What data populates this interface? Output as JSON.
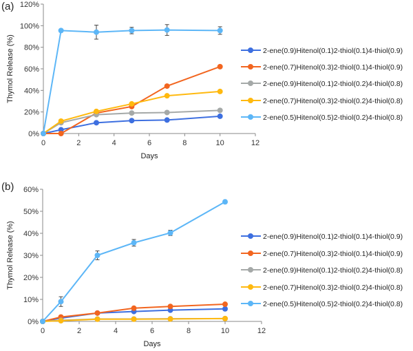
{
  "legend_labels": [
    "2-ene(0.9)Hitenol(0.1)2-thiol(0.1)4-thiol(0.9)",
    "2-ene(0.7)Hitenol(0.3)2-thiol(0.1)4-thiol(0.9)",
    "2-ene(0.9)Hitenol(0.1)2-thiol(0.2)4-thiol(0.8)",
    "2-ene(0.7)Hitenol(0.3)2-thiol(0.2)4-thiol(0.8)",
    "2-ene(0.5)Hitenol(0.5)2-thiol(0.2)4-thiol(0.8)"
  ],
  "chart_data": [
    {
      "type": "line",
      "panel_label": "(a)",
      "xlabel": "Days",
      "ylabel": "Thymol Release (%)",
      "xlim": [
        0,
        12
      ],
      "ylim": [
        0,
        120
      ],
      "xticks": [
        "0",
        "2",
        "4",
        "6",
        "8",
        "10",
        "12"
      ],
      "yticks": [
        "0%",
        "20%",
        "40%",
        "60%",
        "80%",
        "100%",
        "120%"
      ],
      "legend_position": "right",
      "grid": false,
      "x": [
        0,
        1,
        3,
        5,
        7,
        10
      ],
      "series": [
        {
          "name": "2-ene(0.9)Hitenol(0.1)2-thiol(0.1)4-thiol(0.9)",
          "color": "#3d6fe0",
          "values": [
            0,
            3.5,
            10,
            12,
            12.5,
            16
          ]
        },
        {
          "name": "2-ene(0.7)Hitenol(0.3)2-thiol(0.1)4-thiol(0.9)",
          "color": "#f2651f",
          "values": [
            0,
            0,
            19,
            25,
            44,
            62
          ]
        },
        {
          "name": "2-ene(0.9)Hitenol(0.1)2-thiol(0.2)4-thiol(0.8)",
          "color": "#a5a9a8",
          "values": [
            0,
            10,
            17.5,
            19,
            19.5,
            21.5
          ]
        },
        {
          "name": "2-ene(0.7)Hitenol(0.3)2-thiol(0.2)4-thiol(0.8)",
          "color": "#ffb90f",
          "values": [
            0,
            11.5,
            20.5,
            27.5,
            35,
            39
          ]
        },
        {
          "name": "2-ene(0.5)Hitenol(0.5)2-thiol(0.2)4-thiol(0.8)",
          "color": "#5cb6f7",
          "values": [
            0,
            95.5,
            94,
            95.5,
            96,
            95.5
          ],
          "errors": [
            0,
            0,
            6.5,
            3,
            5,
            3.5
          ]
        }
      ]
    },
    {
      "type": "line",
      "panel_label": "(b)",
      "xlabel": "Days",
      "ylabel": "Thymol Release (%)",
      "xlim": [
        0,
        12
      ],
      "ylim": [
        0,
        60
      ],
      "xticks": [
        "0",
        "2",
        "4",
        "6",
        "8",
        "10",
        "12"
      ],
      "yticks": [
        "0%",
        "10%",
        "20%",
        "30%",
        "40%",
        "50%",
        "60%"
      ],
      "legend_position": "right",
      "grid": false,
      "x": [
        0,
        1,
        3,
        5,
        7,
        10
      ],
      "series": [
        {
          "name": "2-ene(0.9)Hitenol(0.1)2-thiol(0.1)4-thiol(0.9)",
          "color": "#3d6fe0",
          "values": [
            0,
            1.5,
            3.8,
            4.5,
            5.1,
            5.7
          ]
        },
        {
          "name": "2-ene(0.7)Hitenol(0.3)2-thiol(0.1)4-thiol(0.9)",
          "color": "#f2651f",
          "values": [
            0,
            2,
            3.8,
            6,
            6.8,
            7.8
          ]
        },
        {
          "name": "2-ene(0.9)Hitenol(0.1)2-thiol(0.2)4-thiol(0.8)",
          "color": "#a5a9a8",
          "values": [
            0,
            0.5,
            1.1,
            1.1,
            1.2,
            1.3
          ]
        },
        {
          "name": "2-ene(0.7)Hitenol(0.3)2-thiol(0.2)4-thiol(0.8)",
          "color": "#ffb90f",
          "values": [
            0,
            0.3,
            1,
            1,
            1.1,
            1.3
          ]
        },
        {
          "name": "2-ene(0.5)Hitenol(0.5)2-thiol(0.2)4-thiol(0.8)",
          "color": "#5cb6f7",
          "values": [
            0,
            9,
            30,
            35.7,
            40.2,
            54.3
          ],
          "errors": [
            0,
            2.2,
            2,
            1.5,
            1.2,
            0
          ]
        }
      ]
    }
  ]
}
